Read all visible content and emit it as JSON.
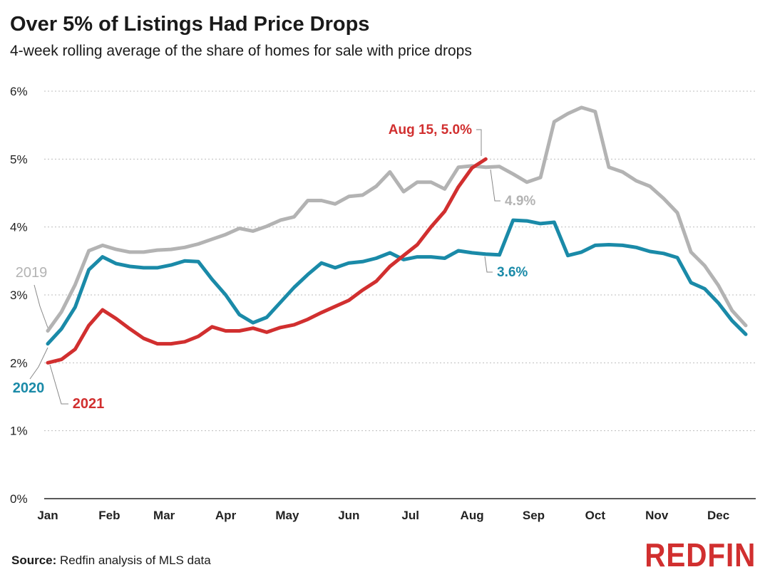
{
  "header": {
    "title": "Over 5% of Listings Had Price Drops",
    "subtitle": "4-week rolling average of the share of homes for sale with price drops"
  },
  "footer": {
    "source_label": "Source:",
    "source_text": "Redfin analysis of MLS data",
    "logo": "REDFIN"
  },
  "chart_data": {
    "type": "line",
    "title": "Over 5% of Listings Had Price Drops",
    "subtitle": "4-week rolling average of the share of homes for sale with price drops",
    "xlabel": "",
    "ylabel": "",
    "x_unit": "week of year",
    "xlim": [
      1,
      53
    ],
    "ylim": [
      0,
      6
    ],
    "grid": true,
    "y_ticks": [
      0,
      1,
      2,
      3,
      4,
      5,
      6
    ],
    "y_tick_labels": [
      "0%",
      "1%",
      "2%",
      "3%",
      "4%",
      "5%",
      "6%"
    ],
    "x_ticks": [
      1,
      5.5,
      9.5,
      14,
      18.5,
      23,
      27.5,
      32,
      36.5,
      41,
      45.5,
      50
    ],
    "x_tick_labels": [
      "Jan",
      "Feb",
      "Mar",
      "Apr",
      "May",
      "Jun",
      "Jul",
      "Aug",
      "Sep",
      "Oct",
      "Nov",
      "Dec"
    ],
    "series": [
      {
        "name": "2019",
        "color": "#b3b3b3",
        "x": [
          1,
          2,
          3,
          4,
          5,
          6,
          7,
          8,
          9,
          10,
          11,
          12,
          13,
          14,
          15,
          16,
          17,
          18,
          19,
          20,
          21,
          22,
          23,
          24,
          25,
          26,
          27,
          28,
          29,
          30,
          31,
          32,
          33,
          34,
          35,
          36,
          37,
          38,
          39,
          40,
          41,
          42,
          43,
          44,
          45,
          46,
          47,
          48,
          49,
          50,
          51,
          52
        ],
        "values": [
          2.47,
          2.75,
          3.15,
          3.65,
          3.73,
          3.67,
          3.63,
          3.63,
          3.66,
          3.67,
          3.7,
          3.75,
          3.82,
          3.89,
          3.98,
          3.94,
          4.01,
          4.1,
          4.15,
          4.39,
          4.39,
          4.34,
          4.45,
          4.47,
          4.6,
          4.81,
          4.52,
          4.66,
          4.66,
          4.56,
          4.88,
          4.9,
          4.88,
          4.89,
          4.78,
          4.66,
          4.73,
          5.55,
          5.67,
          5.76,
          5.7,
          4.88,
          4.81,
          4.68,
          4.6,
          4.42,
          4.21,
          3.63,
          3.43,
          3.14,
          2.77,
          2.55
        ]
      },
      {
        "name": "2020",
        "color": "#1a8aa8",
        "x": [
          1,
          2,
          3,
          4,
          5,
          6,
          7,
          8,
          9,
          10,
          11,
          12,
          13,
          14,
          15,
          16,
          17,
          18,
          19,
          20,
          21,
          22,
          23,
          24,
          25,
          26,
          27,
          28,
          29,
          30,
          31,
          32,
          33,
          34,
          35,
          36,
          37,
          38,
          39,
          40,
          41,
          42,
          43,
          44,
          45,
          46,
          47,
          48,
          49,
          50,
          51,
          52
        ],
        "values": [
          2.28,
          2.5,
          2.82,
          3.37,
          3.56,
          3.46,
          3.42,
          3.4,
          3.4,
          3.44,
          3.5,
          3.49,
          3.23,
          3.0,
          2.71,
          2.59,
          2.67,
          2.89,
          3.11,
          3.3,
          3.47,
          3.4,
          3.47,
          3.49,
          3.54,
          3.62,
          3.52,
          3.56,
          3.56,
          3.54,
          3.65,
          3.62,
          3.6,
          3.59,
          4.1,
          4.09,
          4.05,
          4.07,
          3.58,
          3.63,
          3.73,
          3.74,
          3.73,
          3.7,
          3.64,
          3.61,
          3.55,
          3.18,
          3.09,
          2.88,
          2.62,
          2.42
        ]
      },
      {
        "name": "2021",
        "color": "#d12f2f",
        "x": [
          1,
          2,
          3,
          4,
          5,
          6,
          7,
          8,
          9,
          10,
          11,
          12,
          13,
          14,
          15,
          16,
          17,
          18,
          19,
          20,
          21,
          22,
          23,
          24,
          25,
          26,
          27,
          28,
          29,
          30,
          31,
          32,
          33
        ],
        "values": [
          2.0,
          2.05,
          2.2,
          2.55,
          2.78,
          2.65,
          2.5,
          2.36,
          2.28,
          2.28,
          2.31,
          2.39,
          2.53,
          2.47,
          2.47,
          2.51,
          2.45,
          2.52,
          2.56,
          2.64,
          2.74,
          2.83,
          2.92,
          3.07,
          3.2,
          3.42,
          3.58,
          3.74,
          4.0,
          4.23,
          4.59,
          4.87,
          5.0
        ]
      }
    ],
    "annotations": [
      {
        "series": "2021",
        "text": "Aug 15, 5.0%",
        "color": "#d12f2f"
      },
      {
        "series": "2019",
        "text": "4.9%",
        "color": "#b3b3b3"
      },
      {
        "series": "2020",
        "text": "3.6%",
        "color": "#1a8aa8"
      },
      {
        "series": "2019",
        "text": "2019",
        "color": "#b3b3b3"
      },
      {
        "series": "2020",
        "text": "2020",
        "color": "#1a8aa8"
      },
      {
        "series": "2021",
        "text": "2021",
        "color": "#d12f2f"
      }
    ]
  }
}
